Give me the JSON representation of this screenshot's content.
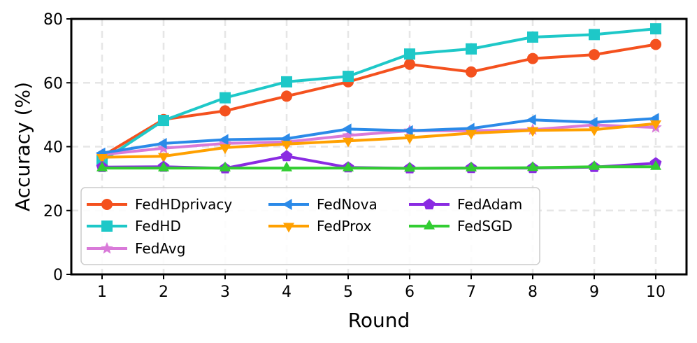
{
  "chart_data": {
    "type": "line",
    "title": "",
    "xlabel": "Round",
    "ylabel": "Accuracy (%)",
    "x": [
      1,
      2,
      3,
      4,
      5,
      6,
      7,
      8,
      9,
      10
    ],
    "xlim": [
      0.5,
      10.5
    ],
    "ylim": [
      0,
      80
    ],
    "yticks": [
      0,
      20,
      40,
      60,
      80
    ],
    "grid": true,
    "legend_position": "lower-left",
    "series": [
      {
        "name": "FedHDprivacy",
        "color": "#f4511e",
        "marker": "circle",
        "values": [
          37,
          48.5,
          51.2,
          55.8,
          60.3,
          65.8,
          63.4,
          67.6,
          68.8,
          72
        ]
      },
      {
        "name": "FedHD",
        "color": "#1ec8c8",
        "marker": "square",
        "values": [
          35.5,
          48.2,
          55.3,
          60.3,
          62,
          69,
          70.6,
          74.3,
          75.1,
          76.9
        ]
      },
      {
        "name": "FedAvg",
        "color": "#d97ad9",
        "marker": "star",
        "values": [
          37.5,
          39.5,
          41,
          41.5,
          43.5,
          45,
          45,
          45.3,
          46.8,
          46
        ]
      },
      {
        "name": "FedNova",
        "color": "#2b8ae8",
        "marker": "triangle-left",
        "values": [
          38,
          41,
          42.2,
          42.5,
          45.5,
          45,
          45.7,
          48.4,
          47.6,
          48.8
        ]
      },
      {
        "name": "FedProx",
        "color": "#ffa000",
        "marker": "triangle-down",
        "values": [
          36.7,
          37,
          39.7,
          40.8,
          41.8,
          42.8,
          44.2,
          45.1,
          45.3,
          47.2
        ]
      },
      {
        "name": "FedAdam",
        "color": "#8a2be2",
        "marker": "pentagon",
        "values": [
          33.6,
          33.7,
          33.2,
          37,
          33.5,
          33.2,
          33.3,
          33.3,
          33.6,
          34.8
        ]
      },
      {
        "name": "FedSGD",
        "color": "#32cd32",
        "marker": "triangle-up",
        "values": [
          33.3,
          33.3,
          33.3,
          33.3,
          33.3,
          33.2,
          33.3,
          33.4,
          33.7,
          33.7
        ]
      }
    ],
    "legend_columns": [
      [
        "FedHDprivacy",
        "FedHD",
        "FedAvg"
      ],
      [
        "FedNova",
        "FedProx"
      ],
      [
        "FedAdam",
        "FedSGD"
      ]
    ]
  }
}
